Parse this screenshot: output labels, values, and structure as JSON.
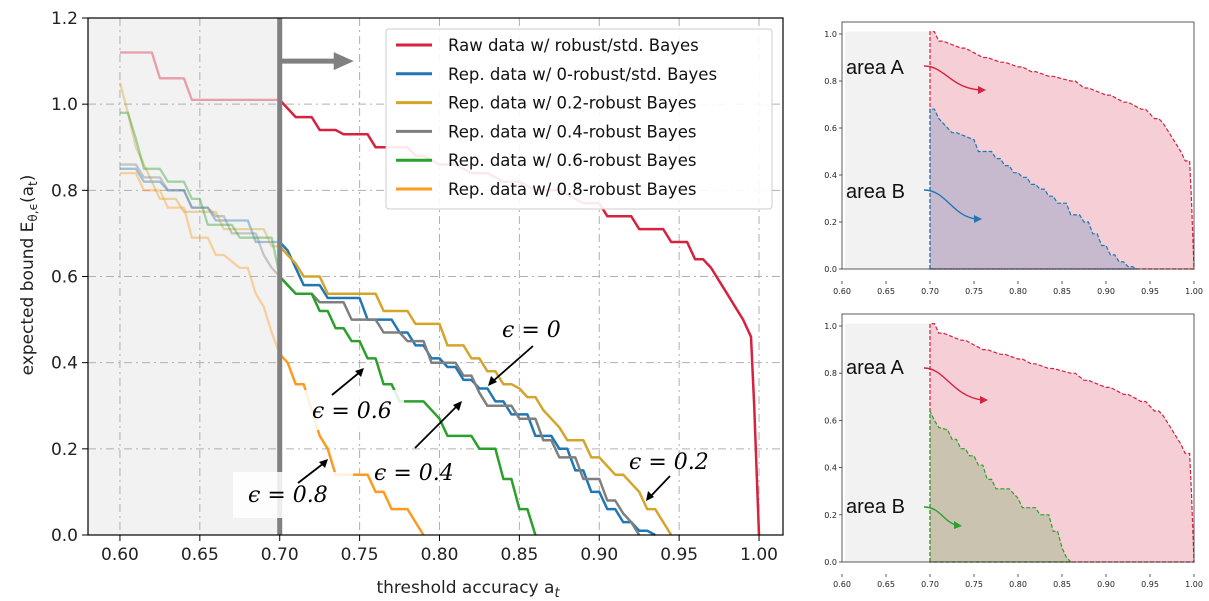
{
  "chart_data": [
    {
      "type": "line",
      "xlabel": "threshold accuracy a",
      "xlabel_sub": "t",
      "ylabel": "expected bound E",
      "ylabel_sub": "θ,ϵ",
      "ylabel_arg": "(a",
      "ylabel_arg_sub": "t",
      "ylabel_close": ")",
      "xlim": [
        0.58,
        1.015
      ],
      "ylim": [
        0.0,
        1.2
      ],
      "xticks": [
        "0.60",
        "0.65",
        "0.70",
        "0.75",
        "0.80",
        "0.85",
        "0.90",
        "0.95",
        "1.00"
      ],
      "yticks": [
        "0.0",
        "0.2",
        "0.4",
        "0.6",
        "0.8",
        "1.0",
        "1.2"
      ],
      "grid": true,
      "threshold": 0.7,
      "legend_position": "top-right",
      "series": [
        {
          "name": "Raw data w/ robust/std. Bayes",
          "color": "#d6213f",
          "x": [
            0.6,
            0.62,
            0.625,
            0.64,
            0.645,
            0.7,
            0.71,
            0.72,
            0.725,
            0.735,
            0.74,
            0.755,
            0.76,
            0.78,
            0.785,
            0.79,
            0.8,
            0.81,
            0.82,
            0.83,
            0.84,
            0.85,
            0.86,
            0.875,
            0.89,
            0.9,
            0.905,
            0.92,
            0.925,
            0.94,
            0.945,
            0.955,
            0.96,
            0.965,
            0.97,
            0.975,
            0.98,
            0.985,
            0.99,
            0.995,
            0.997,
            0.999,
            1.0
          ],
          "y": [
            1.12,
            1.12,
            1.06,
            1.06,
            1.01,
            1.01,
            0.97,
            0.97,
            0.94,
            0.94,
            0.93,
            0.93,
            0.9,
            0.9,
            0.88,
            0.88,
            0.86,
            0.86,
            0.84,
            0.84,
            0.82,
            0.82,
            0.8,
            0.8,
            0.77,
            0.77,
            0.74,
            0.74,
            0.71,
            0.71,
            0.68,
            0.68,
            0.64,
            0.64,
            0.62,
            0.59,
            0.56,
            0.53,
            0.5,
            0.46,
            0.3,
            0.1,
            0.0
          ]
        },
        {
          "name": "Rep. data w/ 0-robust/std. Bayes",
          "color": "#1f77b4",
          "x": [
            0.6,
            0.61,
            0.615,
            0.625,
            0.63,
            0.64,
            0.645,
            0.655,
            0.66,
            0.68,
            0.685,
            0.7,
            0.705,
            0.71,
            0.715,
            0.725,
            0.73,
            0.75,
            0.755,
            0.77,
            0.775,
            0.78,
            0.785,
            0.79,
            0.795,
            0.8,
            0.805,
            0.81,
            0.815,
            0.82,
            0.825,
            0.83,
            0.835,
            0.84,
            0.845,
            0.855,
            0.86,
            0.87,
            0.875,
            0.88,
            0.885,
            0.89,
            0.895,
            0.9,
            0.905,
            0.91,
            0.915,
            0.92,
            0.925,
            0.93,
            0.935
          ],
          "y": [
            0.85,
            0.85,
            0.82,
            0.82,
            0.8,
            0.8,
            0.76,
            0.76,
            0.73,
            0.73,
            0.68,
            0.68,
            0.66,
            0.62,
            0.58,
            0.58,
            0.55,
            0.55,
            0.5,
            0.5,
            0.47,
            0.47,
            0.44,
            0.44,
            0.41,
            0.41,
            0.39,
            0.39,
            0.36,
            0.36,
            0.34,
            0.34,
            0.31,
            0.31,
            0.28,
            0.28,
            0.23,
            0.23,
            0.2,
            0.2,
            0.15,
            0.15,
            0.1,
            0.1,
            0.06,
            0.06,
            0.03,
            0.03,
            0.01,
            0.01,
            0.0
          ]
        },
        {
          "name": "Rep. data w/ 0.2-robust Bayes",
          "color": "#d4a52a",
          "x": [
            0.6,
            0.605,
            0.61,
            0.62,
            0.625,
            0.635,
            0.64,
            0.66,
            0.665,
            0.69,
            0.695,
            0.7,
            0.705,
            0.71,
            0.715,
            0.725,
            0.73,
            0.76,
            0.765,
            0.78,
            0.785,
            0.8,
            0.805,
            0.815,
            0.82,
            0.825,
            0.83,
            0.835,
            0.84,
            0.845,
            0.85,
            0.855,
            0.86,
            0.865,
            0.875,
            0.88,
            0.89,
            0.895,
            0.9,
            0.91,
            0.915,
            0.925,
            0.93,
            0.935,
            0.94,
            0.945
          ],
          "y": [
            1.05,
            0.98,
            0.9,
            0.82,
            0.78,
            0.78,
            0.75,
            0.75,
            0.71,
            0.71,
            0.67,
            0.67,
            0.65,
            0.63,
            0.6,
            0.6,
            0.56,
            0.56,
            0.52,
            0.52,
            0.49,
            0.49,
            0.44,
            0.44,
            0.41,
            0.41,
            0.38,
            0.38,
            0.35,
            0.35,
            0.34,
            0.32,
            0.32,
            0.29,
            0.25,
            0.22,
            0.22,
            0.18,
            0.18,
            0.14,
            0.14,
            0.1,
            0.06,
            0.06,
            0.03,
            0.0
          ]
        },
        {
          "name": "Rep. data w/ 0.4-robust Bayes",
          "color": "#7f7f7f",
          "x": [
            0.6,
            0.61,
            0.615,
            0.625,
            0.63,
            0.64,
            0.645,
            0.655,
            0.66,
            0.665,
            0.67,
            0.685,
            0.69,
            0.695,
            0.7,
            0.705,
            0.71,
            0.72,
            0.725,
            0.74,
            0.745,
            0.76,
            0.765,
            0.775,
            0.78,
            0.79,
            0.795,
            0.81,
            0.815,
            0.82,
            0.825,
            0.83,
            0.835,
            0.845,
            0.85,
            0.86,
            0.865,
            0.87,
            0.875,
            0.885,
            0.89,
            0.9,
            0.905,
            0.91,
            0.915,
            0.92,
            0.925
          ],
          "y": [
            0.86,
            0.86,
            0.83,
            0.83,
            0.8,
            0.8,
            0.76,
            0.76,
            0.74,
            0.74,
            0.7,
            0.7,
            0.65,
            0.62,
            0.6,
            0.58,
            0.56,
            0.56,
            0.54,
            0.54,
            0.5,
            0.5,
            0.47,
            0.47,
            0.45,
            0.45,
            0.4,
            0.4,
            0.37,
            0.37,
            0.33,
            0.3,
            0.3,
            0.3,
            0.27,
            0.27,
            0.22,
            0.22,
            0.18,
            0.18,
            0.13,
            0.13,
            0.08,
            0.08,
            0.05,
            0.03,
            0.0
          ]
        },
        {
          "name": "Rep. data w/ 0.6-robust Bayes",
          "color": "#2ca02c",
          "x": [
            0.6,
            0.605,
            0.61,
            0.615,
            0.625,
            0.63,
            0.64,
            0.645,
            0.65,
            0.655,
            0.67,
            0.675,
            0.695,
            0.7,
            0.705,
            0.71,
            0.72,
            0.725,
            0.73,
            0.735,
            0.74,
            0.745,
            0.75,
            0.755,
            0.76,
            0.765,
            0.77,
            0.775,
            0.785,
            0.79,
            0.8,
            0.805,
            0.82,
            0.825,
            0.835,
            0.84,
            0.845,
            0.85,
            0.855,
            0.86
          ],
          "y": [
            0.98,
            0.98,
            0.92,
            0.85,
            0.85,
            0.82,
            0.82,
            0.78,
            0.78,
            0.72,
            0.72,
            0.69,
            0.69,
            0.6,
            0.58,
            0.56,
            0.56,
            0.52,
            0.52,
            0.48,
            0.48,
            0.45,
            0.45,
            0.41,
            0.41,
            0.35,
            0.35,
            0.31,
            0.31,
            0.31,
            0.27,
            0.23,
            0.23,
            0.2,
            0.2,
            0.13,
            0.13,
            0.06,
            0.06,
            0.0
          ]
        },
        {
          "name": "Rep. data w/ 0.8-robust Bayes",
          "color": "#ff9a1f",
          "x": [
            0.6,
            0.61,
            0.615,
            0.625,
            0.63,
            0.64,
            0.645,
            0.655,
            0.66,
            0.665,
            0.675,
            0.68,
            0.685,
            0.69,
            0.695,
            0.7,
            0.705,
            0.71,
            0.715,
            0.72,
            0.725,
            0.73,
            0.735,
            0.745,
            0.755,
            0.76,
            0.765,
            0.77,
            0.78,
            0.785,
            0.79
          ],
          "y": [
            0.84,
            0.84,
            0.8,
            0.8,
            0.76,
            0.76,
            0.69,
            0.69,
            0.65,
            0.65,
            0.62,
            0.62,
            0.56,
            0.53,
            0.47,
            0.42,
            0.4,
            0.35,
            0.35,
            0.29,
            0.23,
            0.2,
            0.14,
            0.14,
            0.14,
            0.1,
            0.1,
            0.06,
            0.06,
            0.03,
            0.0
          ]
        }
      ],
      "annotations": [
        {
          "text": "ϵ = 0",
          "x": 0.85,
          "y": 0.5
        },
        {
          "text": "ϵ = 0.2",
          "x": 0.965,
          "y": 0.17
        },
        {
          "text": "ϵ = 0.4",
          "x": 0.79,
          "y": 0.14
        },
        {
          "text": "ϵ = 0.6",
          "x": 0.742,
          "y": 0.28
        },
        {
          "text": "ϵ = 0.8",
          "x": 0.682,
          "y": 0.09
        }
      ]
    },
    {
      "type": "area",
      "xlim": [
        0.6,
        1.0
      ],
      "ylim": [
        0.0,
        1.0
      ],
      "xticks": [
        "0.60",
        "0.65",
        "0.70",
        "0.75",
        "0.80",
        "0.85",
        "0.90",
        "0.95",
        "1.00"
      ],
      "yticks": [
        "0.0",
        "0.2",
        "0.4",
        "0.6",
        "0.8",
        "1.0"
      ],
      "labels": [
        "area A",
        "area B"
      ],
      "colors": {
        "upper": "#d6213f",
        "lower": "#1f77b4"
      },
      "upper": {
        "x": [
          0.7,
          0.7,
          0.705,
          0.71,
          0.715,
          0.735,
          0.74,
          0.76,
          0.765,
          0.78,
          0.785,
          0.8,
          0.805,
          0.815,
          0.82,
          0.835,
          0.84,
          0.86,
          0.865,
          0.875,
          0.88,
          0.9,
          0.905,
          0.92,
          0.925,
          0.94,
          0.945,
          0.955,
          0.96,
          0.965,
          0.97,
          0.975,
          0.98,
          0.985,
          0.99,
          0.995,
          0.997,
          1.0
        ],
        "y": [
          0.0,
          1.01,
          1.01,
          0.97,
          0.97,
          0.94,
          0.94,
          0.9,
          0.9,
          0.88,
          0.88,
          0.86,
          0.86,
          0.84,
          0.84,
          0.82,
          0.82,
          0.8,
          0.8,
          0.77,
          0.77,
          0.74,
          0.74,
          0.71,
          0.71,
          0.68,
          0.68,
          0.64,
          0.64,
          0.62,
          0.59,
          0.56,
          0.53,
          0.5,
          0.46,
          0.46,
          0.3,
          0.0
        ]
      },
      "lower": {
        "x": [
          0.7,
          0.7,
          0.705,
          0.71,
          0.715,
          0.725,
          0.73,
          0.75,
          0.755,
          0.77,
          0.775,
          0.78,
          0.785,
          0.79,
          0.795,
          0.8,
          0.805,
          0.81,
          0.815,
          0.82,
          0.825,
          0.83,
          0.835,
          0.84,
          0.845,
          0.855,
          0.86,
          0.87,
          0.875,
          0.88,
          0.885,
          0.89,
          0.895,
          0.9,
          0.905,
          0.91,
          0.915,
          0.92,
          0.925,
          0.93,
          0.935
        ],
        "y": [
          0.0,
          0.68,
          0.68,
          0.64,
          0.62,
          0.58,
          0.58,
          0.55,
          0.5,
          0.5,
          0.47,
          0.47,
          0.44,
          0.44,
          0.41,
          0.41,
          0.39,
          0.39,
          0.36,
          0.36,
          0.34,
          0.34,
          0.31,
          0.31,
          0.28,
          0.28,
          0.23,
          0.23,
          0.2,
          0.2,
          0.15,
          0.15,
          0.1,
          0.1,
          0.06,
          0.06,
          0.03,
          0.03,
          0.01,
          0.01,
          0.0
        ]
      }
    },
    {
      "type": "area",
      "xlim": [
        0.6,
        1.0
      ],
      "ylim": [
        0.0,
        1.0
      ],
      "xticks": [
        "0.60",
        "0.65",
        "0.70",
        "0.75",
        "0.80",
        "0.85",
        "0.90",
        "0.95",
        "1.00"
      ],
      "yticks": [
        "0.0",
        "0.2",
        "0.4",
        "0.6",
        "0.8",
        "1.0"
      ],
      "labels": [
        "area A",
        "area B"
      ],
      "colors": {
        "upper": "#d6213f",
        "lower": "#2ca02c"
      },
      "upper": {
        "x": [
          0.7,
          0.7,
          0.705,
          0.71,
          0.715,
          0.735,
          0.74,
          0.76,
          0.765,
          0.78,
          0.785,
          0.8,
          0.805,
          0.815,
          0.82,
          0.835,
          0.84,
          0.86,
          0.865,
          0.875,
          0.88,
          0.9,
          0.905,
          0.92,
          0.925,
          0.94,
          0.945,
          0.955,
          0.96,
          0.965,
          0.97,
          0.975,
          0.98,
          0.985,
          0.99,
          0.995,
          0.997,
          1.0
        ],
        "y": [
          0.0,
          1.01,
          1.01,
          0.97,
          0.97,
          0.94,
          0.94,
          0.9,
          0.9,
          0.88,
          0.88,
          0.86,
          0.86,
          0.84,
          0.84,
          0.82,
          0.82,
          0.8,
          0.8,
          0.77,
          0.77,
          0.74,
          0.74,
          0.71,
          0.71,
          0.68,
          0.68,
          0.64,
          0.64,
          0.62,
          0.59,
          0.56,
          0.53,
          0.5,
          0.46,
          0.46,
          0.3,
          0.0
        ]
      },
      "lower": {
        "x": [
          0.7,
          0.7,
          0.705,
          0.71,
          0.72,
          0.725,
          0.73,
          0.735,
          0.74,
          0.745,
          0.75,
          0.755,
          0.76,
          0.765,
          0.77,
          0.775,
          0.785,
          0.79,
          0.8,
          0.805,
          0.82,
          0.825,
          0.835,
          0.84,
          0.845,
          0.85,
          0.855,
          0.86
        ],
        "y": [
          0.0,
          0.64,
          0.6,
          0.57,
          0.56,
          0.52,
          0.52,
          0.48,
          0.48,
          0.45,
          0.45,
          0.41,
          0.41,
          0.35,
          0.35,
          0.31,
          0.31,
          0.31,
          0.27,
          0.23,
          0.23,
          0.2,
          0.2,
          0.13,
          0.13,
          0.06,
          0.02,
          0.0
        ]
      }
    }
  ]
}
